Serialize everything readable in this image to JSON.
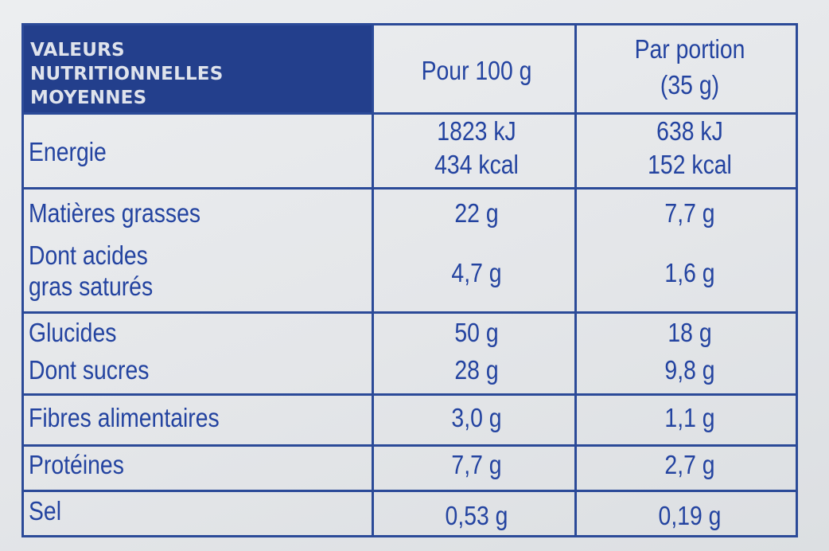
{
  "header": {
    "title_line1": "VALEURS",
    "title_line2": "NUTRITIONNELLES",
    "title_line3": "MOYENNES",
    "col_per100": "Pour 100 g",
    "col_portion_line1": "Par portion",
    "col_portion_line2": "(35 g)"
  },
  "rows": {
    "energie": {
      "label": "Energie",
      "per100_kj": "1823 kJ",
      "per100_kcal": "434 kcal",
      "portion_kj": "638 kJ",
      "portion_kcal": "152 kcal"
    },
    "matieres_grasses": {
      "label": "Matières grasses",
      "per100": "22 g",
      "portion": "7,7 g"
    },
    "acides_gras": {
      "label_line1": "Dont acides",
      "label_line2": "gras saturés",
      "per100": "4,7 g",
      "portion": "1,6 g"
    },
    "glucides": {
      "label": "Glucides",
      "per100": "50 g",
      "portion": "18 g"
    },
    "sucres": {
      "label": "Dont sucres",
      "per100": "28 g",
      "portion": "9,8 g"
    },
    "fibres": {
      "label": "Fibres alimentaires",
      "per100": "3,0 g",
      "portion": "1,1 g"
    },
    "proteines": {
      "label": "Protéines",
      "per100": "7,7 g",
      "portion": "2,7 g"
    },
    "sel": {
      "label": "Sel",
      "per100": "0,53 g",
      "portion": "0,19 g"
    }
  }
}
